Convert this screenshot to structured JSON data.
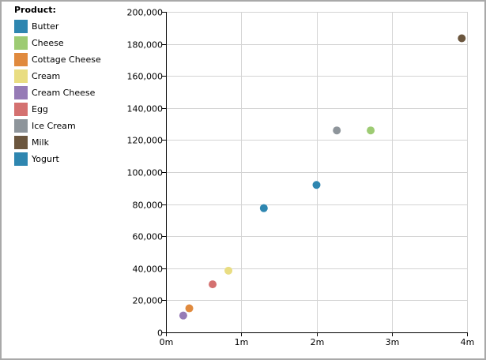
{
  "chart_data": {
    "type": "scatter",
    "legend_title": "Product:",
    "legend_position": "left",
    "grid": true,
    "xlim": [
      0,
      4000000
    ],
    "ylim": [
      0,
      200000
    ],
    "x_ticks": [
      0,
      1000000,
      2000000,
      3000000,
      4000000
    ],
    "x_tick_labels": [
      "0m",
      "1m",
      "2m",
      "3m",
      "4m"
    ],
    "y_ticks": [
      0,
      20000,
      40000,
      60000,
      80000,
      100000,
      120000,
      140000,
      160000,
      180000,
      200000
    ],
    "y_tick_labels": [
      "0",
      "20,000",
      "40,000",
      "60,000",
      "80,000",
      "100,000",
      "120,000",
      "140,000",
      "160,000",
      "180,000",
      "200,000"
    ],
    "series": [
      {
        "name": "Butter",
        "color": "#2E86B0",
        "x": 2000000,
        "y": 92000
      },
      {
        "name": "Cheese",
        "color": "#9DCB73",
        "x": 2720000,
        "y": 126000
      },
      {
        "name": "Cottage Cheese",
        "color": "#E08A3E",
        "x": 310000,
        "y": 15000
      },
      {
        "name": "Cream",
        "color": "#E9DD82",
        "x": 830000,
        "y": 38500
      },
      {
        "name": "Cream Cheese",
        "color": "#967BB6",
        "x": 230000,
        "y": 10500
      },
      {
        "name": "Egg",
        "color": "#D47170",
        "x": 620000,
        "y": 30000
      },
      {
        "name": "Ice Cream",
        "color": "#8E959B",
        "x": 2270000,
        "y": 126000
      },
      {
        "name": "Milk",
        "color": "#6B563E",
        "x": 3930000,
        "y": 183500
      },
      {
        "name": "Yogurt",
        "color": "#2E86B0",
        "x": 1300000,
        "y": 77500
      }
    ]
  }
}
